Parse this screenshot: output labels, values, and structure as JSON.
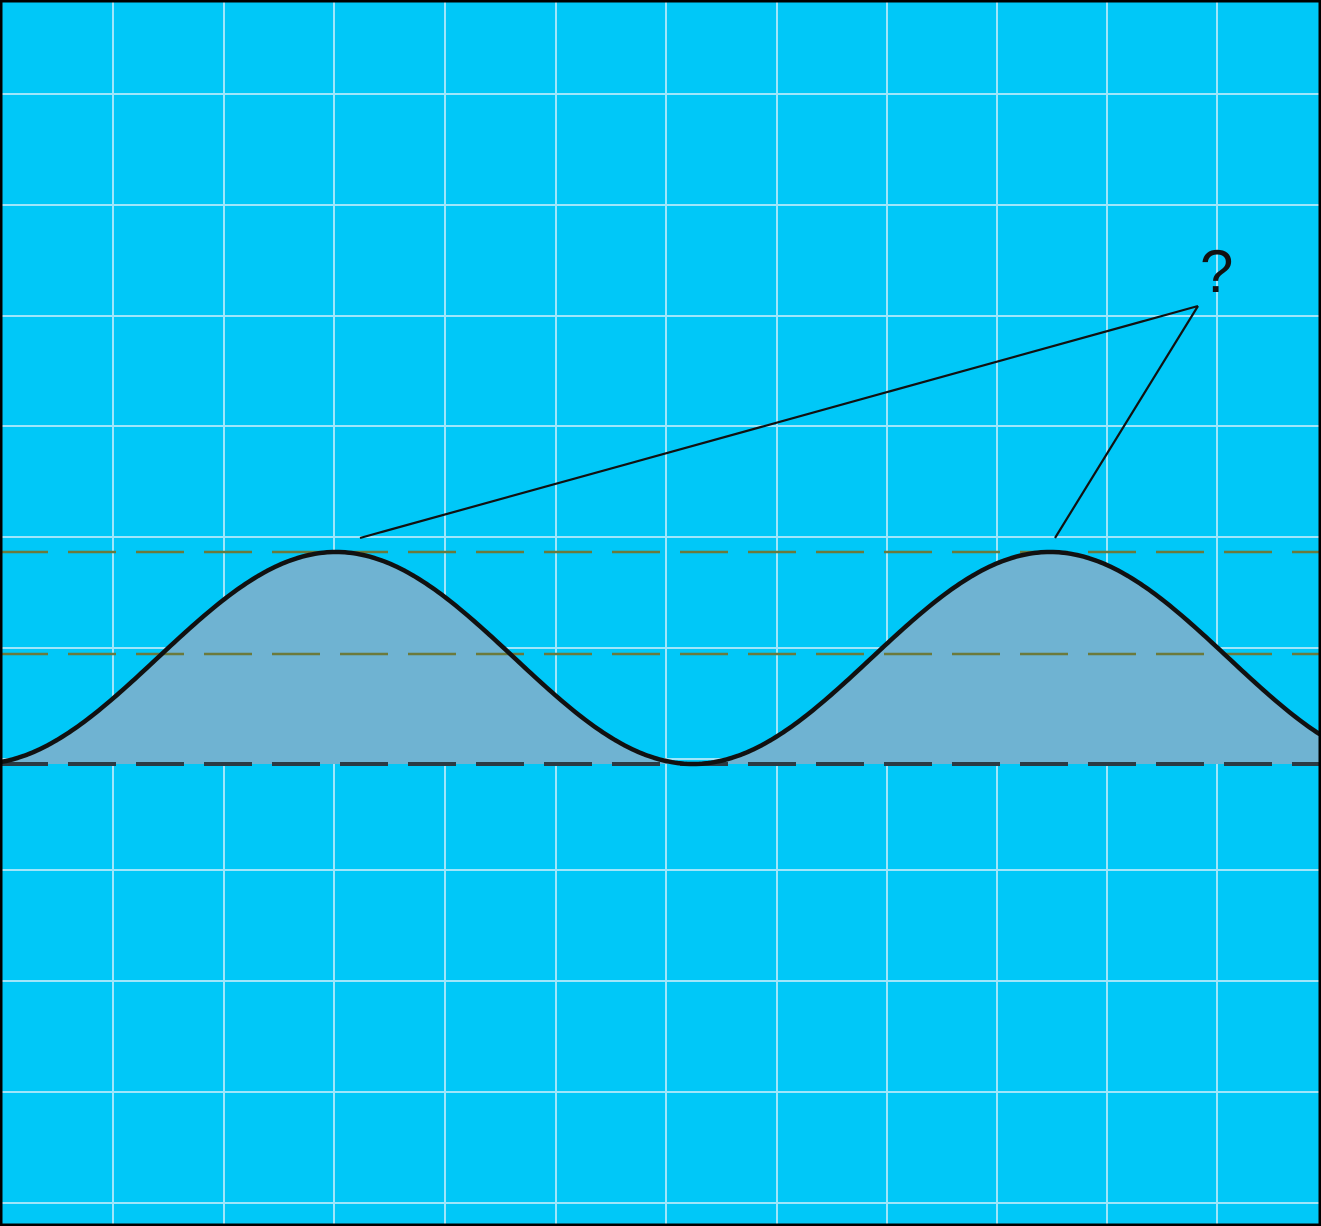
{
  "colors": {
    "background": "#00c8f8",
    "grid": "#9fe6fb",
    "frame": "#000000",
    "wave_fill": "#6fb3d2",
    "wave_stroke": "#111111",
    "crest_line": "#6b7a3c",
    "mid_line": "#6b7a3c",
    "trough_line": "#2a3a44",
    "pointer_line": "#111111",
    "label": "#111111"
  },
  "annotation": {
    "label": "?"
  }
}
